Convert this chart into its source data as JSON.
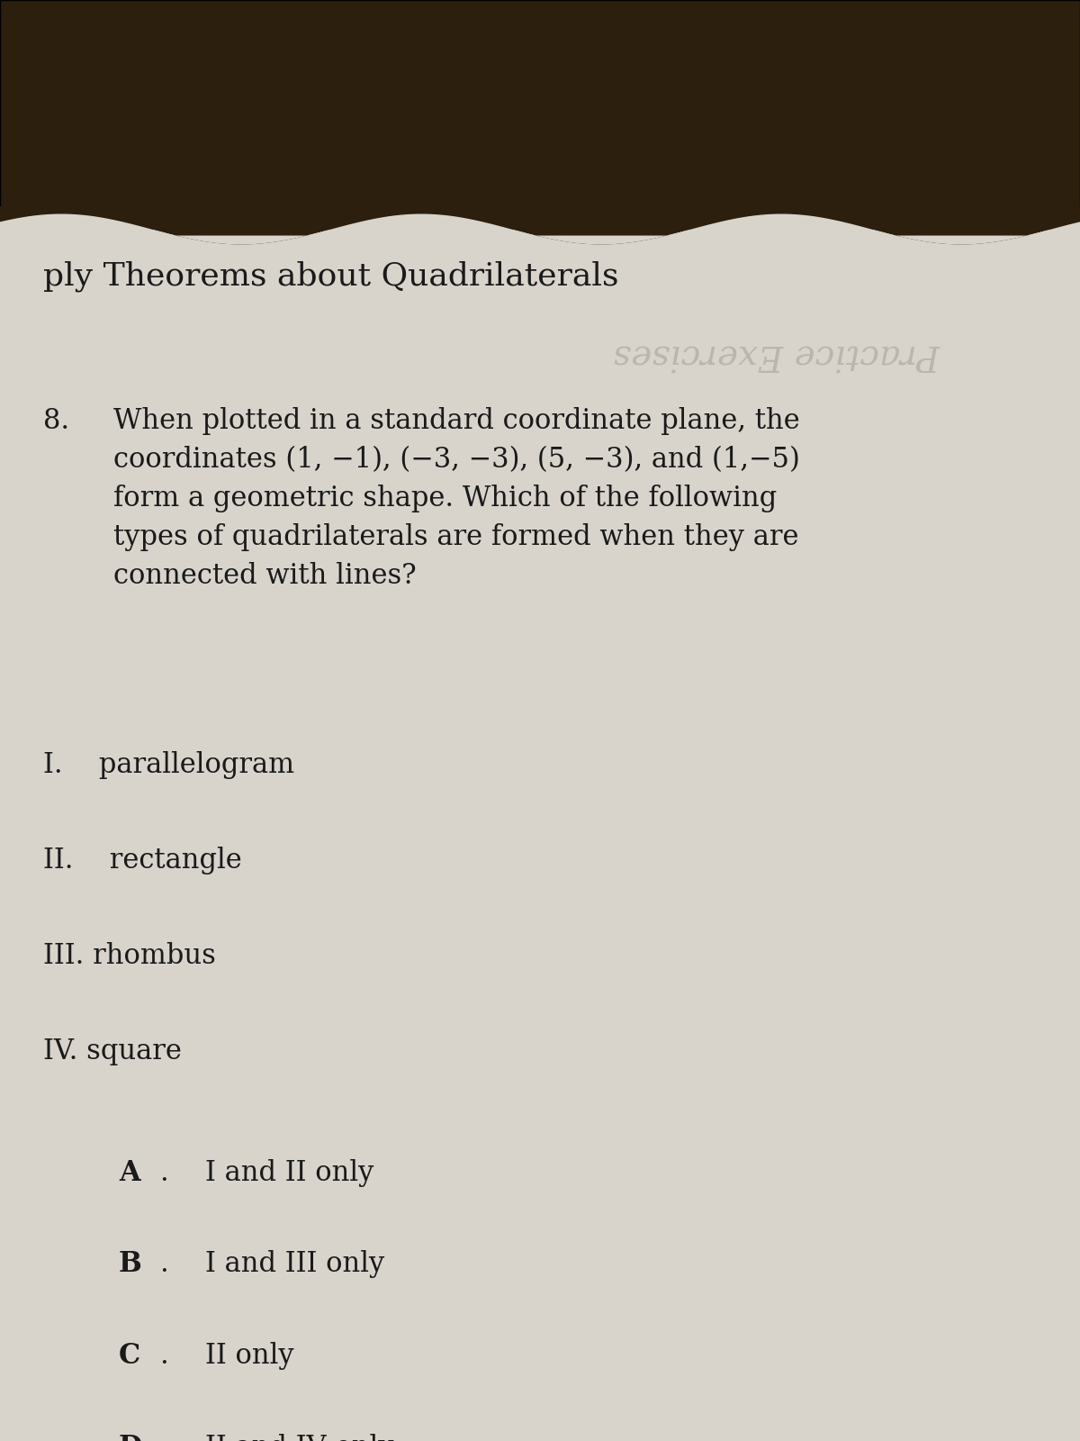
{
  "bg_top_color": "#2c1f0e",
  "bg_paper_color": "#d8d4cc",
  "header_text": "ply Theorems about Quadrilaterals",
  "watermark_text": "Practice Exercises",
  "question_number": "8.",
  "question_text": "When plotted in a standard coordinate plane, the\ncoordinates (1, −1), (−3, −3), (5, −3), and (1,−5)\nform a geometric shape. Which of the following\ntypes of quadrilaterals are formed when they are\nconnected with lines?",
  "items": [
    "I.  parallelogram",
    "II.  rectangle",
    "III. rhombus",
    "IV. square"
  ],
  "answers": [
    "A.  I and II only",
    "B.  I and III only",
    "C.  II only",
    "D.  II and IV only"
  ],
  "header_fontsize": 26,
  "question_fontsize": 22,
  "item_fontsize": 22,
  "answer_fontsize": 22,
  "watermark_fontsize": 28
}
